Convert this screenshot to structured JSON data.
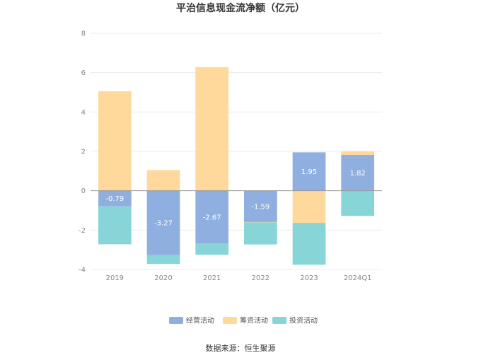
{
  "chart_data": {
    "type": "bar",
    "stacked": true,
    "title": "平治信息现金流净额（亿元）",
    "categories": [
      "2019",
      "2020",
      "2021",
      "2022",
      "2023",
      "2024Q1"
    ],
    "ylim": [
      -4,
      8
    ],
    "yticks": [
      8,
      6,
      4,
      2,
      0,
      -2,
      -4
    ],
    "grid": true,
    "legend_position": "bottom",
    "series": [
      {
        "name": "经营活动",
        "color": "#8eafdf",
        "values": [
          -0.79,
          -3.27,
          -2.67,
          -1.59,
          1.95,
          1.82
        ],
        "labels": [
          "-0.79",
          "-3.27",
          "-2.67",
          "-1.59",
          "1.95",
          "1.82"
        ]
      },
      {
        "name": "筹资活动",
        "color": "#fed99b",
        "values": [
          5.05,
          1.05,
          6.28,
          -0.02,
          -1.63,
          0.18
        ]
      },
      {
        "name": "投资活动",
        "color": "#88d5d8",
        "values": [
          -1.93,
          -0.45,
          -0.58,
          -1.12,
          -2.13,
          -1.28
        ]
      }
    ]
  },
  "footer": {
    "source": "数据来源：恒生聚源"
  }
}
